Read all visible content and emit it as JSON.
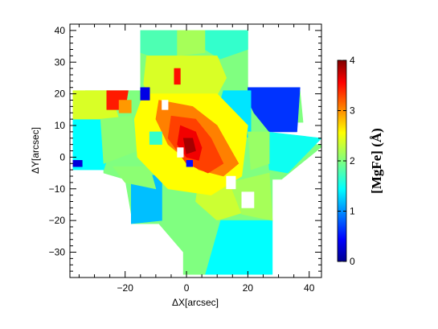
{
  "chart_data": {
    "type": "heatmap",
    "title": "",
    "xlabel": "ΔX[arcsec]",
    "ylabel": "ΔY[arcsec]",
    "xlim": [
      -38,
      44
    ],
    "ylim": [
      -38,
      42
    ],
    "xticks": [
      -20,
      0,
      20,
      40
    ],
    "yticks": [
      -30,
      -20,
      -10,
      0,
      10,
      20,
      30,
      40
    ],
    "colorbar": {
      "label": "[MgFe] (Å)",
      "range": [
        0,
        4
      ],
      "ticks": [
        0,
        1,
        2,
        3,
        4
      ],
      "colormap": "jet"
    },
    "regions": [
      {
        "name": "map-footprint",
        "value": 2.0,
        "points": [
          [
            -15,
            40
          ],
          [
            20,
            40
          ],
          [
            20,
            21
          ],
          [
            37,
            21
          ],
          [
            38,
            11
          ],
          [
            27,
            11
          ],
          [
            27,
            4
          ],
          [
            45,
            4
          ],
          [
            31,
            -7
          ],
          [
            28,
            -7
          ],
          [
            28,
            -20
          ],
          [
            27,
            -37
          ],
          [
            -1,
            -37
          ],
          [
            -1,
            -30
          ],
          [
            -9,
            -21
          ],
          [
            -18,
            -21
          ],
          [
            -18,
            -18
          ],
          [
            -20,
            -7
          ],
          [
            -27,
            -5
          ],
          [
            -27,
            -3
          ],
          [
            -37,
            -3
          ],
          [
            -37,
            6
          ],
          [
            -33,
            21
          ],
          [
            -15,
            21
          ],
          [
            -15,
            40
          ]
        ]
      },
      {
        "name": "lower-left-block",
        "value": 1.25,
        "points": [
          [
            -18,
            -5
          ],
          [
            -8,
            -6
          ],
          [
            -8,
            -20
          ],
          [
            -18,
            -21
          ]
        ]
      },
      {
        "name": "top-left-cyan",
        "value": 1.8,
        "points": [
          [
            -15,
            40
          ],
          [
            -3,
            40
          ],
          [
            -3,
            31
          ],
          [
            -9,
            31
          ],
          [
            -15,
            33
          ]
        ]
      },
      {
        "name": "top-right-cyan",
        "value": 1.7,
        "points": [
          [
            6,
            40
          ],
          [
            20,
            40
          ],
          [
            20,
            34
          ],
          [
            11,
            31
          ],
          [
            6,
            34
          ]
        ]
      },
      {
        "name": "top-left-green",
        "value": 2.15,
        "points": [
          [
            -3,
            40
          ],
          [
            6,
            40
          ],
          [
            6,
            33
          ],
          [
            -3,
            32
          ]
        ]
      },
      {
        "name": "upper-yellow-band",
        "value": 2.35,
        "points": [
          [
            -13,
            32
          ],
          [
            10,
            32
          ],
          [
            13,
            25
          ],
          [
            8,
            16
          ],
          [
            -10,
            16
          ],
          [
            -14,
            23
          ]
        ]
      },
      {
        "name": "right-blue-lobe",
        "value": 0.7,
        "points": [
          [
            20,
            22
          ],
          [
            37,
            22
          ],
          [
            36,
            8
          ],
          [
            27,
            8
          ],
          [
            22,
            14
          ],
          [
            20,
            18
          ]
        ]
      },
      {
        "name": "right-cyan-lobe",
        "value": 1.4,
        "points": [
          [
            12,
            21
          ],
          [
            21,
            21
          ],
          [
            21,
            6
          ],
          [
            14,
            8
          ],
          [
            10,
            14
          ]
        ]
      },
      {
        "name": "far-right-cyan",
        "value": 1.55,
        "points": [
          [
            26,
            8
          ],
          [
            44,
            6
          ],
          [
            33,
            -5
          ],
          [
            27,
            -4
          ]
        ]
      },
      {
        "name": "left-cyan-column",
        "value": 1.5,
        "points": [
          [
            -37,
            12
          ],
          [
            -28,
            12
          ],
          [
            -25,
            2
          ],
          [
            -27,
            -4
          ],
          [
            -37,
            -4
          ]
        ]
      },
      {
        "name": "left-yellow-patch",
        "value": 2.35,
        "points": [
          [
            -37,
            21
          ],
          [
            -25,
            21
          ],
          [
            -22,
            12
          ],
          [
            -37,
            12
          ]
        ]
      },
      {
        "name": "left-green-patch",
        "value": 2.05,
        "points": [
          [
            -28,
            12
          ],
          [
            -18,
            13
          ],
          [
            -16,
            2
          ],
          [
            -27,
            -2
          ]
        ]
      },
      {
        "name": "lower-left-green",
        "value": 2.05,
        "points": [
          [
            -24,
            -3
          ],
          [
            -12,
            -3
          ],
          [
            -10,
            -10
          ],
          [
            -20,
            -8
          ]
        ]
      },
      {
        "name": "lower-right-cyan",
        "value": 1.5,
        "points": [
          [
            11,
            -20
          ],
          [
            28,
            -20
          ],
          [
            28,
            -37
          ],
          [
            6,
            -37
          ]
        ]
      },
      {
        "name": "lower-right-yellow",
        "value": 2.3,
        "points": [
          [
            4,
            -7
          ],
          [
            15,
            -8
          ],
          [
            20,
            -17
          ],
          [
            10,
            -20
          ],
          [
            3,
            -14
          ]
        ]
      },
      {
        "name": "lower-middle-green",
        "value": 2.0,
        "points": [
          [
            -3,
            -20
          ],
          [
            11,
            -20
          ],
          [
            6,
            -37
          ],
          [
            -1,
            -37
          ],
          [
            -1,
            -29
          ]
        ]
      },
      {
        "name": "lower-right-greenyellow",
        "value": 2.15,
        "points": [
          [
            14,
            -8
          ],
          [
            27,
            -5
          ],
          [
            28,
            -20
          ],
          [
            18,
            -18
          ]
        ]
      },
      {
        "name": "center-yellow-region",
        "value": 2.5,
        "points": [
          [
            -14,
            20
          ],
          [
            10,
            20
          ],
          [
            20,
            10
          ],
          [
            18,
            -6
          ],
          [
            8,
            -12
          ],
          [
            -6,
            -10
          ],
          [
            -16,
            0
          ],
          [
            -17,
            12
          ]
        ]
      },
      {
        "name": "center-orange-ridge",
        "value": 3.0,
        "points": [
          [
            -9,
            18
          ],
          [
            2,
            16
          ],
          [
            10,
            10
          ],
          [
            17,
            -2
          ],
          [
            12,
            -6
          ],
          [
            4,
            -4
          ],
          [
            -6,
            4
          ],
          [
            -10,
            12
          ]
        ]
      },
      {
        "name": "center-orange-core",
        "value": 3.25,
        "points": [
          [
            -5,
            13
          ],
          [
            3,
            12
          ],
          [
            8,
            6
          ],
          [
            12,
            -2
          ],
          [
            7,
            -5
          ],
          [
            0,
            -2
          ],
          [
            -6,
            6
          ]
        ]
      },
      {
        "name": "center-red-core",
        "value": 3.55,
        "points": [
          [
            -2,
            10
          ],
          [
            3,
            8
          ],
          [
            5,
            3
          ],
          [
            4,
            -1
          ],
          [
            0,
            0
          ],
          [
            -3,
            4
          ]
        ]
      },
      {
        "name": "center-darkred",
        "value": 3.85,
        "points": [
          [
            -1,
            6
          ],
          [
            2,
            6
          ],
          [
            3,
            2
          ],
          [
            0,
            1
          ]
        ]
      },
      {
        "name": "red-patch-upper-left",
        "value": 3.4,
        "points": [
          [
            -26,
            21
          ],
          [
            -19,
            21
          ],
          [
            -20,
            15
          ],
          [
            -26,
            15
          ]
        ]
      },
      {
        "name": "red-patch-top",
        "value": 3.45,
        "points": [
          [
            -4,
            28
          ],
          [
            -2,
            28
          ],
          [
            -2,
            23
          ],
          [
            -4,
            23
          ]
        ]
      },
      {
        "name": "blue-patch-left",
        "value": 0.35,
        "points": [
          [
            -37,
            -1
          ],
          [
            -34,
            -1
          ],
          [
            -34,
            -3
          ],
          [
            -37,
            -3
          ]
        ]
      },
      {
        "name": "blue-patch-upper",
        "value": 0.4,
        "points": [
          [
            -15,
            22
          ],
          [
            -12,
            22
          ],
          [
            -12,
            18
          ],
          [
            -15,
            18
          ]
        ]
      },
      {
        "name": "orange-patch-upper",
        "value": 2.9,
        "points": [
          [
            -22,
            18
          ],
          [
            -18,
            18
          ],
          [
            -18,
            14
          ],
          [
            -22,
            14
          ]
        ]
      },
      {
        "name": "cyan-patch-midleft",
        "value": 1.7,
        "points": [
          [
            -12,
            8
          ],
          [
            -8,
            8
          ],
          [
            -8,
            4
          ],
          [
            -12,
            4
          ]
        ]
      },
      {
        "name": "blue-dot-center",
        "value": 0.55,
        "points": [
          [
            0,
            -1
          ],
          [
            2,
            -1
          ],
          [
            2,
            -3
          ],
          [
            0,
            -3
          ]
        ]
      },
      {
        "name": "right-green-blob",
        "value": 2.1,
        "points": [
          [
            20,
            8
          ],
          [
            27,
            8
          ],
          [
            27,
            -2
          ],
          [
            21,
            -4
          ]
        ]
      }
    ],
    "holes": [
      {
        "name": "hole-upper-left",
        "points": [
          [
            -8,
            18
          ],
          [
            -6,
            18
          ],
          [
            -6,
            15
          ],
          [
            -8,
            15
          ]
        ]
      },
      {
        "name": "hole-center-left",
        "points": [
          [
            -3,
            3
          ],
          [
            -1,
            3
          ],
          [
            -1,
            0
          ],
          [
            -3,
            0
          ]
        ]
      },
      {
        "name": "hole-right",
        "points": [
          [
            13,
            -6
          ],
          [
            16,
            -6
          ],
          [
            16,
            -10
          ],
          [
            13,
            -10
          ]
        ]
      },
      {
        "name": "hole-lower-right",
        "points": [
          [
            18,
            -11
          ],
          [
            22,
            -11
          ],
          [
            22,
            -16
          ],
          [
            18,
            -16
          ]
        ]
      }
    ]
  }
}
